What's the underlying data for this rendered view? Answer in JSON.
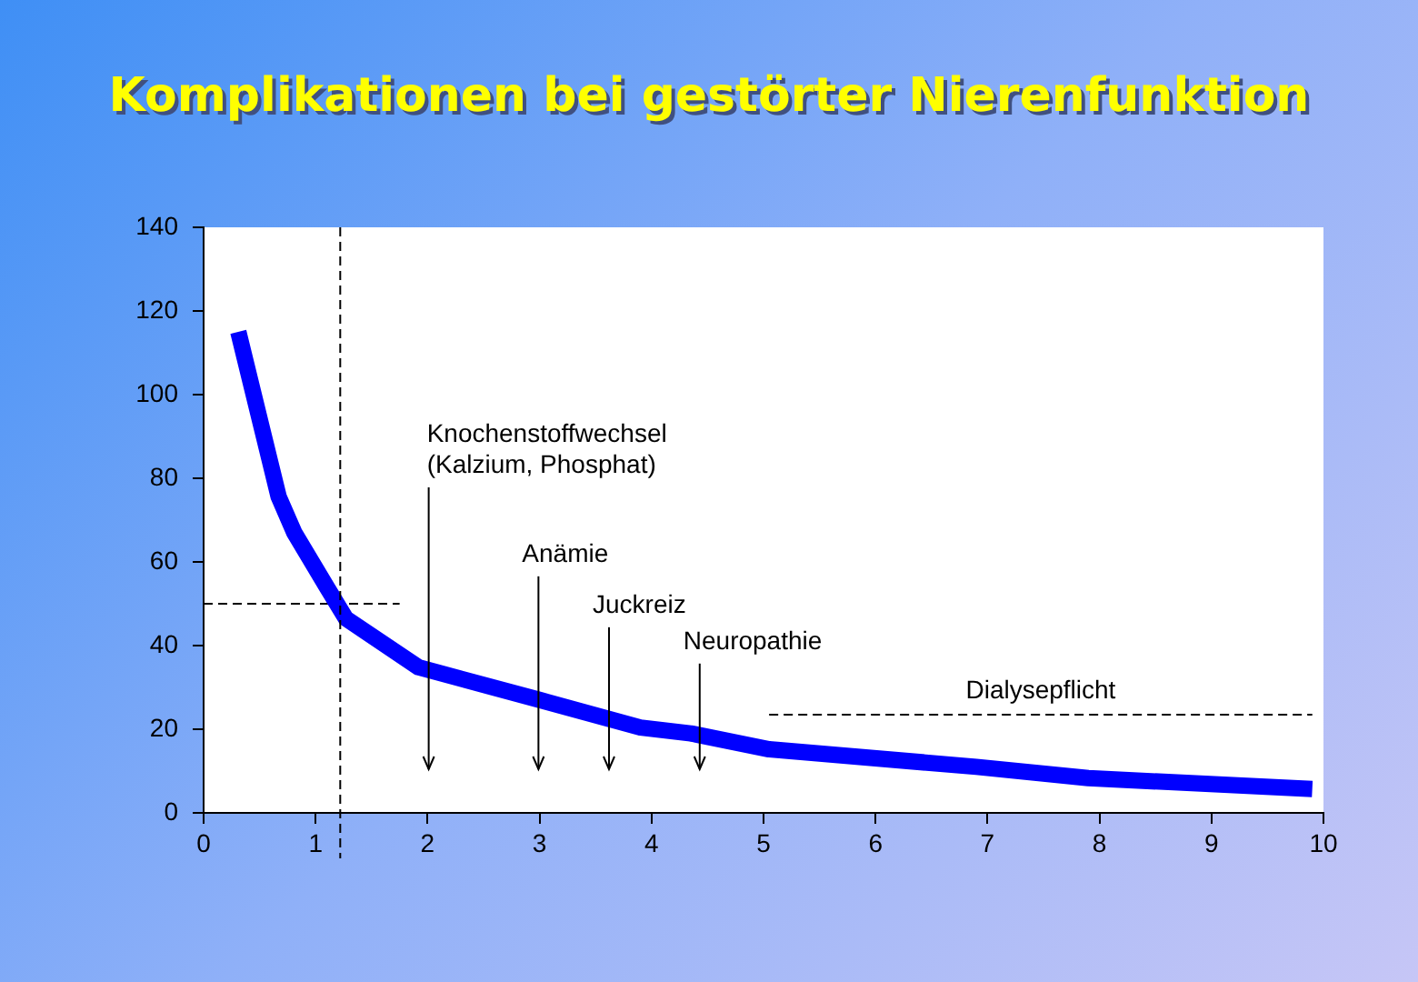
{
  "chart_data": {
    "type": "line",
    "title": "Komplikationen bei gestörter Nierenfunktion",
    "xlim": [
      0,
      10
    ],
    "xticks": [
      0,
      1,
      2,
      3,
      4,
      5,
      6,
      7,
      8,
      9,
      10
    ],
    "ylim": [
      0,
      140
    ],
    "yticks": [
      0,
      20,
      40,
      60,
      80,
      100,
      120,
      140
    ],
    "grid": false,
    "legend": false,
    "marker": "none",
    "series": [
      {
        "color": "#0000ff",
        "line_style": "solid",
        "x": [
          0.31,
          0.67,
          0.81,
          1.1,
          1.27,
          1.92,
          3.0,
          3.9,
          4.35,
          5.05,
          6.9,
          7.9,
          9.9
        ],
        "values": [
          115,
          75.6,
          67,
          54,
          46.5,
          34.8,
          27,
          20.4,
          19,
          15.2,
          11,
          8.3,
          5.7
        ]
      },
      {
        "color": "#000000",
        "line_style": "dashed",
        "x": [
          0,
          1.75
        ],
        "values": [
          50,
          50
        ]
      },
      {
        "name": "Dialysepflicht",
        "color": "#000000",
        "line_style": "dashed",
        "x": [
          5.05,
          9.9
        ],
        "values": [
          23.5,
          23.5
        ]
      }
    ],
    "ref_lines": [
      {
        "axis": "x",
        "value": 1.22,
        "color": "#000000",
        "line_style": "dashed"
      }
    ],
    "annotations": [
      "Knochenstoffwechsel\n(Kalzium, Phosphat)",
      "Anämie",
      "Juckreiz",
      "Neuropathie"
    ]
  }
}
